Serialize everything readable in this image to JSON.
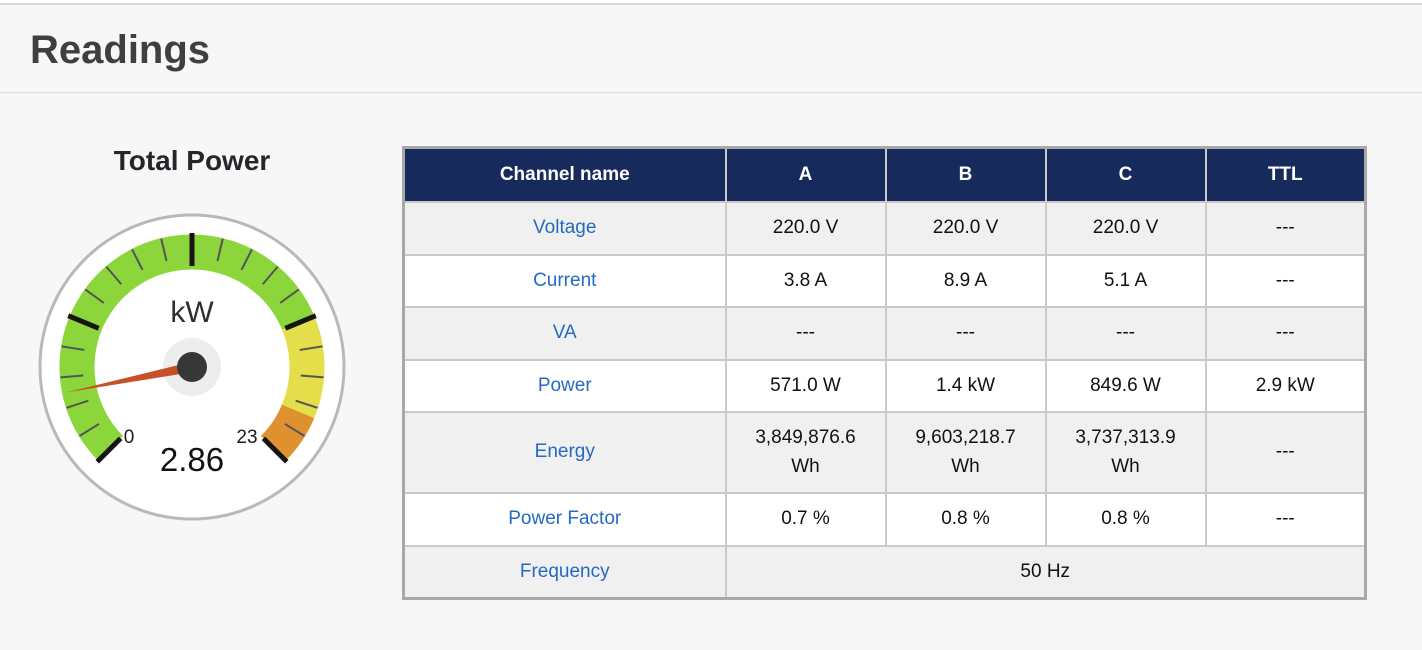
{
  "header": {
    "title": "Readings"
  },
  "gauge": {
    "title": "Total Power",
    "unit": "kW",
    "value": 2.86,
    "value_label": "2.86",
    "min": 0,
    "max": 23,
    "min_label": "0",
    "max_label": "23",
    "angle_start": 225,
    "angle_sweep": 270,
    "major_ticks": 5,
    "minor_per_major": 4,
    "zones": [
      {
        "from": 0,
        "to": 17.25,
        "color": "#8cd63c"
      },
      {
        "from": 17.25,
        "to": 21.1,
        "color": "#e5de4b"
      },
      {
        "from": 21.1,
        "to": 23,
        "color": "#e0912f"
      }
    ],
    "colors": {
      "ring": "#b9b9b9",
      "needle": "#c94f26",
      "hub": "#37373a",
      "hub_halo": "#ededed",
      "tick_major": "#141414",
      "tick_minor": "#555555"
    }
  },
  "table": {
    "header_bg": "#162a5b",
    "link_color": "#2569c3",
    "columns": [
      "Channel name",
      "A",
      "B",
      "C",
      "TTL"
    ],
    "rows": [
      {
        "label": "Voltage",
        "values": [
          "220.0 V",
          "220.0 V",
          "220.0 V",
          "---"
        ]
      },
      {
        "label": "Current",
        "values": [
          "3.8 A",
          "8.9 A",
          "5.1 A",
          "---"
        ]
      },
      {
        "label": "VA",
        "values": [
          "---",
          "---",
          "---",
          "---"
        ]
      },
      {
        "label": "Power",
        "values": [
          "571.0 W",
          "1.4 kW",
          "849.6 W",
          "2.9 kW"
        ]
      },
      {
        "label": "Energy",
        "values": [
          "3,849,876.6 Wh",
          "9,603,218.7 Wh",
          "3,737,313.9 Wh",
          "---"
        ]
      },
      {
        "label": "Power Factor",
        "values": [
          "0.7 %",
          "0.8 %",
          "0.8 %",
          "---"
        ]
      },
      {
        "label": "Frequency",
        "values": [
          "50 Hz"
        ],
        "span": 4
      }
    ]
  }
}
